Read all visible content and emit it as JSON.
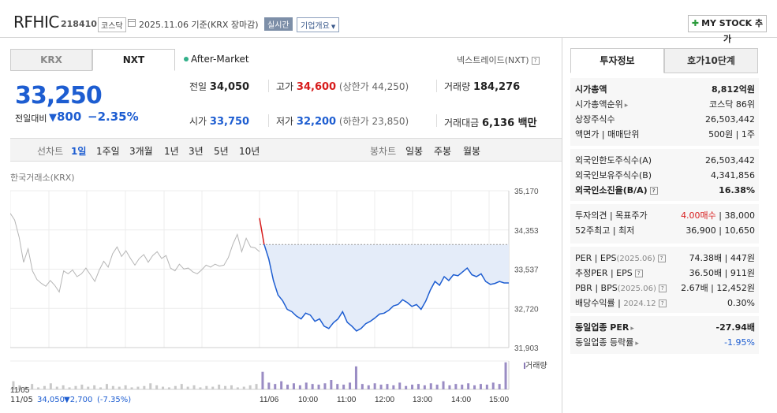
{
  "header": {
    "name": "RFHIC",
    "code": "218410",
    "market": "코스닥",
    "date": "2025.11.06",
    "basis": "기준(KRX 장마감)",
    "realtime": "실시간",
    "company_info": "기업개요",
    "mystock": "MY STOCK 추가"
  },
  "market_tabs": [
    "KRX",
    "NXT"
  ],
  "after_market": "After-Market",
  "nextrade": "넥스트레이드(NXT)",
  "price": {
    "current": "33,250",
    "change_label": "전일대비",
    "change": "800",
    "change_pct": "−2.35%"
  },
  "quote": {
    "prev_label": "전일",
    "prev": "34,050",
    "high_label": "고가",
    "high": "34,600",
    "upper_limit": "(상한가 44,250)",
    "volume_label": "거래량",
    "volume": "184,276",
    "open_label": "시가",
    "open": "33,750",
    "low_label": "저가",
    "low": "32,200",
    "lower_limit": "(하한가 23,850)",
    "amount_label": "거래대금",
    "amount": "6,136 백만"
  },
  "periods": {
    "line_label": "선차트",
    "line_items": [
      "1일",
      "1주일",
      "3개월",
      "1년",
      "3년",
      "5년",
      "10년"
    ],
    "candle_label": "봉차트",
    "candle_items": [
      "일봉",
      "주봉",
      "월봉"
    ]
  },
  "exchange_label": "한국거래소(KRX)",
  "chart_data": {
    "type": "line",
    "y_ticks": [
      "35,170",
      "34,353",
      "33,537",
      "32,720",
      "31,903"
    ],
    "x_ticks": [
      "11/05",
      "11/06",
      "10:00",
      "11:00",
      "12:00",
      "13:00",
      "14:00",
      "15:00"
    ],
    "volume_legend": "거래량",
    "prev_day_summary": {
      "date": "11/05",
      "close": "34,050",
      "change": "▼2,700",
      "pct": "(-7.35%)"
    },
    "ylim": [
      31903,
      35170
    ],
    "reference_price": 34050,
    "colors": {
      "today": "#1d5dd1",
      "prev": "#b5b5b5",
      "up": "#d71c1c",
      "fill": "#e4ecf9"
    },
    "prev_series": [
      34700,
      34560,
      34200,
      33680,
      33960,
      33500,
      33320,
      33240,
      33180,
      33300,
      33200,
      33060,
      33500,
      33440,
      33520,
      33380,
      33440,
      33560,
      33420,
      33280,
      33520,
      33700,
      33580,
      33860,
      34000,
      33800,
      33920,
      33760,
      33620,
      33760,
      33840,
      33680,
      33820,
      33900,
      33760,
      33820,
      33560,
      33500,
      33640,
      33540,
      33560,
      33480,
      33440,
      33520,
      33620,
      33580,
      33640,
      33600,
      33620,
      33780,
      34050,
      34260,
      33900,
      34180,
      34000,
      33980,
      33900
    ],
    "today_series": [
      34600,
      34050,
      33750,
      33300,
      33000,
      32880,
      32700,
      32650,
      32560,
      32500,
      32620,
      32580,
      32450,
      32500,
      32350,
      32300,
      32420,
      32500,
      32650,
      32430,
      32350,
      32250,
      32300,
      32400,
      32450,
      32520,
      32600,
      32620,
      32680,
      32770,
      32800,
      32900,
      32840,
      32760,
      32800,
      32700,
      32870,
      33100,
      33280,
      33200,
      33380,
      33300,
      33420,
      33400,
      33480,
      33560,
      33420,
      33380,
      33440,
      33280,
      33220,
      33240,
      33280,
      33250,
      33250
    ],
    "volume_prev": [
      12,
      6,
      4,
      8,
      3,
      5,
      9,
      4,
      6,
      3,
      5,
      7,
      4,
      6,
      3,
      8,
      5,
      4,
      6,
      3,
      4,
      5,
      9,
      6,
      4,
      3,
      5,
      8,
      4,
      6,
      3,
      5,
      4,
      7,
      5,
      6,
      3,
      4,
      6,
      8
    ],
    "volume_today": [
      26,
      10,
      8,
      12,
      7,
      9,
      6,
      10,
      8,
      7,
      9,
      14,
      8,
      7,
      10,
      34,
      8,
      6,
      9,
      7,
      8,
      6,
      10,
      5,
      7,
      8,
      6,
      9,
      7,
      12,
      6,
      8,
      7,
      9,
      6,
      8,
      7,
      10,
      8,
      40
    ]
  },
  "right_tabs": [
    "투자정보",
    "호가10단계"
  ],
  "invest": {
    "g1": [
      {
        "k": "시가총액",
        "v": "8,812억원",
        "bold": true
      },
      {
        "k": "시가총액순위",
        "v": "코스닥 86위",
        "arrow": true
      },
      {
        "k": "상장주식수",
        "v": "26,503,442"
      },
      {
        "k": "액면가 | 매매단위",
        "v": "500원 | 1주"
      }
    ],
    "g2": [
      {
        "k": "외국인한도주식수(A)",
        "v": "26,503,442"
      },
      {
        "k": "외국인보유주식수(B)",
        "v": "4,341,856"
      },
      {
        "k": "외국인소진율(B/A)",
        "v": "16.38%",
        "bold": true,
        "q": true
      }
    ],
    "g3": [
      {
        "k": "투자의견 | 목표주가",
        "v1": "4.00매수",
        "v2": " | 38,000"
      },
      {
        "k": "52주최고 | 최저",
        "v": "36,900 | 10,650"
      }
    ],
    "g4": [
      {
        "k": "PER | EPS",
        "kd": "(2025.06)",
        "v": "74.38배 | 447원",
        "q": true
      },
      {
        "k": "추정PER | EPS",
        "v": "36.50배 | 911원",
        "q": true
      },
      {
        "k": "PBR | BPS",
        "kd": "(2025.06)",
        "v": "2.67배 | 12,452원",
        "q": true
      },
      {
        "k": "배당수익률 | ",
        "kd": "2024.12",
        "v": "0.30%",
        "q": true
      }
    ],
    "g5": [
      {
        "k": "동일업종 PER",
        "v": "-27.94배",
        "bold": true,
        "arrow": true
      },
      {
        "k": "동일업종 등락률",
        "v": "-1.95%",
        "blue": true,
        "arrow": true
      }
    ]
  }
}
